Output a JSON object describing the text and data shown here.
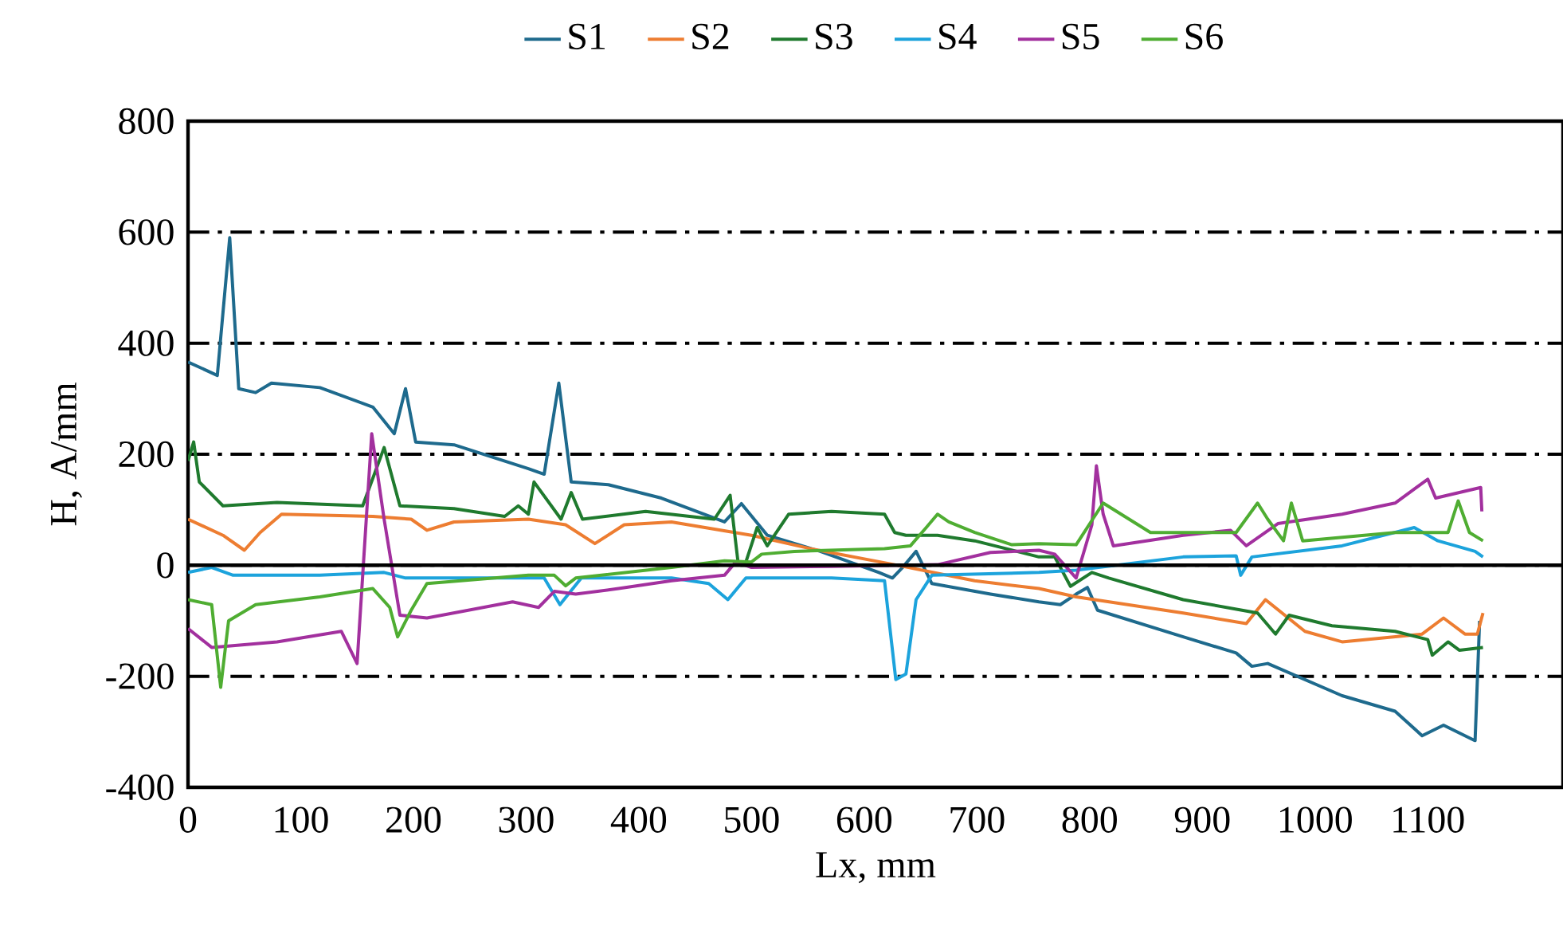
{
  "chart_data": {
    "type": "line",
    "xlabel": "Lx, mm",
    "ylabel": "H, A/mm",
    "xlim": [
      0,
      1220
    ],
    "xticks": [
      0,
      100,
      200,
      300,
      400,
      500,
      600,
      700,
      800,
      900,
      1000,
      1100
    ],
    "ylim": [
      -400,
      800
    ],
    "yticks": [
      -400,
      -200,
      0,
      200,
      400,
      600,
      800
    ],
    "grid": "y",
    "legend": "top",
    "marker": "none",
    "line_style": "solid",
    "series": [
      {
        "name": "S1",
        "color": "#1e6a8d",
        "x": [
          0,
          26,
          37,
          45,
          60,
          74,
          117,
          164,
          183,
          193,
          202,
          236,
          302,
          316,
          329,
          340,
          373,
          420,
          476,
          491,
          514,
          561,
          613,
          625,
          634,
          646,
          660,
          712,
          755,
          774,
          788,
          798,
          807,
          883,
          930,
          944,
          958,
          1024,
          1071,
          1095,
          1114,
          1142,
          1146
        ],
        "values": [
          366,
          342,
          590,
          318,
          311,
          328,
          320,
          285,
          237,
          318,
          222,
          217,
          174,
          164,
          328,
          150,
          145,
          121,
          78,
          111,
          54,
          25,
          -13,
          -23,
          -4,
          25,
          -33,
          -52,
          -66,
          -71,
          -52,
          -40,
          -81,
          -129,
          -158,
          -182,
          -177,
          -235,
          -263,
          -307,
          -288,
          -316,
          -100
        ]
      },
      {
        "name": "S2",
        "color": "#ed7d31",
        "x": [
          0,
          31,
          50,
          64,
          83,
          164,
          198,
          212,
          236,
          302,
          335,
          361,
          387,
          429,
          500,
          552,
          627,
          698,
          755,
          788,
          883,
          939,
          956,
          991,
          1024,
          1095,
          1114,
          1133,
          1144,
          1149
        ],
        "values": [
          83,
          54,
          27,
          59,
          92,
          88,
          83,
          63,
          78,
          83,
          73,
          39,
          73,
          78,
          54,
          30,
          1,
          -28,
          -42,
          -57,
          -86,
          -105,
          -62,
          -119,
          -138,
          -124,
          -95,
          -124,
          -124,
          -86
        ]
      },
      {
        "name": "S3",
        "color": "#1f7a2e",
        "x": [
          0,
          5,
          10,
          31,
          79,
          155,
          174,
          188,
          236,
          281,
          293,
          302,
          307,
          331,
          340,
          350,
          406,
          467,
          481,
          488,
          495,
          505,
          514,
          533,
          571,
          618,
          627,
          637,
          665,
          698,
          755,
          769,
          783,
          802,
          817,
          883,
          949,
          965,
          977,
          1015,
          1071,
          1100,
          1104,
          1118,
          1128,
          1149
        ],
        "values": [
          188,
          222,
          150,
          107,
          113,
          107,
          212,
          107,
          102,
          88,
          107,
          92,
          150,
          83,
          131,
          83,
          97,
          83,
          126,
          6,
          6,
          68,
          35,
          92,
          97,
          92,
          59,
          54,
          54,
          44,
          15,
          15,
          -38,
          -13,
          -23,
          -62,
          -86,
          -124,
          -90,
          -109,
          -119,
          -134,
          -162,
          -138,
          -153,
          -148
        ]
      },
      {
        "name": "S4",
        "color": "#1ca3dc",
        "x": [
          0,
          21,
          40,
          117,
          174,
          193,
          302,
          316,
          330,
          349,
          429,
          462,
          479,
          495,
          571,
          618,
          628,
          637,
          646,
          660,
          755,
          788,
          883,
          930,
          934,
          944,
          1024,
          1088,
          1109,
          1142,
          1149
        ],
        "values": [
          -13,
          -4,
          -18,
          -18,
          -13,
          -23,
          -23,
          -23,
          -71,
          -23,
          -23,
          -33,
          -62,
          -23,
          -23,
          -28,
          -206,
          -196,
          -62,
          -18,
          -13,
          -9,
          15,
          17,
          -18,
          15,
          35,
          68,
          44,
          25,
          15
        ]
      },
      {
        "name": "S5",
        "color": "#a2309e",
        "x": [
          0,
          21,
          79,
          136,
          150,
          163,
          174,
          188,
          212,
          288,
          311,
          325,
          344,
          382,
          429,
          476,
          486,
          500,
          571,
          665,
          712,
          755,
          769,
          788,
          802,
          806,
          812,
          821,
          883,
          925,
          939,
          967,
          1024,
          1071,
          1100,
          1107,
          1147,
          1148
        ],
        "values": [
          -114,
          -148,
          -138,
          -119,
          -177,
          237,
          83,
          -90,
          -95,
          -66,
          -76,
          -47,
          -52,
          -42,
          -28,
          -18,
          6,
          -4,
          -2,
          1,
          23,
          27,
          20,
          -23,
          73,
          179,
          92,
          35,
          54,
          63,
          35,
          75,
          92,
          112,
          155,
          121,
          140,
          97
        ]
      },
      {
        "name": "S6",
        "color": "#4fad32",
        "x": [
          0,
          21,
          29,
          36,
          60,
          117,
          164,
          179,
          186,
          198,
          212,
          302,
          325,
          335,
          344,
          429,
          476,
          500,
          509,
          538,
          618,
          641,
          655,
          665,
          675,
          698,
          731,
          755,
          788,
          812,
          835,
          854,
          930,
          949,
          958,
          972,
          979,
          989,
          1071,
          1118,
          1127,
          1137,
          1149
        ],
        "values": [
          -62,
          -71,
          -220,
          -100,
          -71,
          -57,
          -42,
          -76,
          -129,
          -81,
          -33,
          -18,
          -18,
          -37,
          -23,
          -4,
          8,
          6,
          20,
          25,
          30,
          35,
          68,
          92,
          78,
          59,
          37,
          39,
          37,
          112,
          83,
          59,
          59,
          112,
          83,
          44,
          112,
          44,
          59,
          59,
          116,
          59,
          44
        ]
      }
    ]
  }
}
